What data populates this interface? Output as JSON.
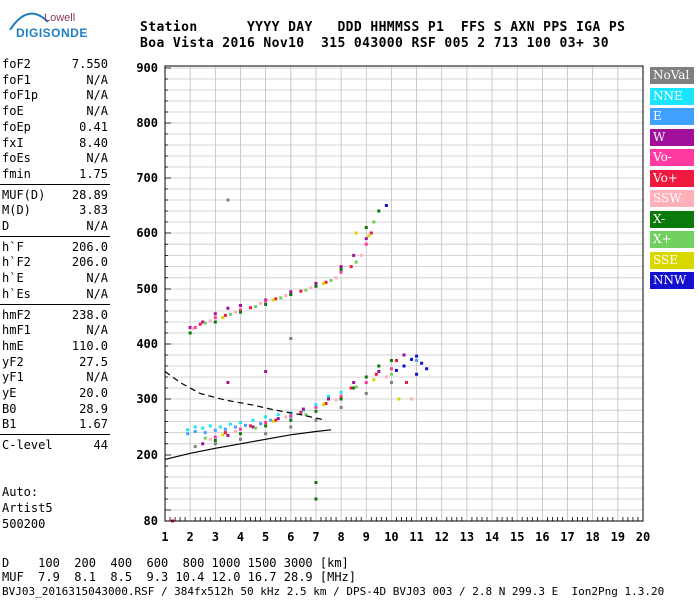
{
  "logo": {
    "line1": "Lowell",
    "line2": "DIGISONDE"
  },
  "header": {
    "line1": "Station      YYYY DAY   DDD HHMMSS P1  FFS S AXN PPS IGA PS",
    "line2": "Boa Vista 2016 Nov10  315 043000 RSF 005 2 713 100 03+ 30"
  },
  "params": [
    {
      "label": "foF2",
      "value": "7.550"
    },
    {
      "label": "foF1",
      "value": "N/A"
    },
    {
      "label": "foF1p",
      "value": "N/A"
    },
    {
      "label": "foE",
      "value": "N/A"
    },
    {
      "label": "foEp",
      "value": "0.41"
    },
    {
      "label": "fxI",
      "value": "8.40"
    },
    {
      "label": "foEs",
      "value": "N/A"
    },
    {
      "label": "fmin",
      "value": "1.75"
    },
    {
      "label": "MUF(D)",
      "value": "28.89"
    },
    {
      "label": "M(D)",
      "value": "3.83"
    },
    {
      "label": "D",
      "value": "N/A"
    },
    {
      "label": "h`F",
      "value": "206.0"
    },
    {
      "label": "h`F2",
      "value": "206.0"
    },
    {
      "label": "h`E",
      "value": "N/A"
    },
    {
      "label": "h`Es",
      "value": "N/A"
    },
    {
      "label": "hmF2",
      "value": "238.0"
    },
    {
      "label": "hmF1",
      "value": "N/A"
    },
    {
      "label": "hmE",
      "value": "110.0"
    },
    {
      "label": "yF2",
      "value": "27.5"
    },
    {
      "label": "yF1",
      "value": "N/A"
    },
    {
      "label": "yE",
      "value": "20.0"
    },
    {
      "label": "B0",
      "value": "28.9"
    },
    {
      "label": "B1",
      "value": "1.67"
    },
    {
      "label": "C-level",
      "value": "44"
    }
  ],
  "auto": {
    "line1": "Auto:",
    "line2": "Artist5",
    "line3": "500200"
  },
  "legend": [
    {
      "label": "NoVal",
      "color": "#808080"
    },
    {
      "label": "NNE",
      "color": "#19e5ff"
    },
    {
      "label": "E",
      "color": "#40a0ff"
    },
    {
      "label": "W",
      "color": "#a0109a"
    },
    {
      "label": "Vo-",
      "color": "#ff3aa0"
    },
    {
      "label": "Vo+",
      "color": "#ee1840"
    },
    {
      "label": "SSW",
      "color": "#ffb0b8"
    },
    {
      "label": "X-",
      "color": "#0a7a0a"
    },
    {
      "label": "X+",
      "color": "#70d060"
    },
    {
      "label": "SSE",
      "color": "#d8d800"
    },
    {
      "label": "NNW",
      "color": "#1410d0"
    }
  ],
  "footer": {
    "line1": "D    100  200  400  600  800 1000 1500 3000 [km]",
    "line2": "MUF  7.9  8.1  8.5  9.3 10.4 12.0 16.7 28.9 [MHz]",
    "line3": "BVJ03_2016315043000.RSF / 384fx512h 50 kHz 2.5 km / DPS-4D BVJ03 003 / 2.8 N 299.3 E  Ion2Png 1.3.20"
  },
  "chart_data": {
    "type": "scatter",
    "xlim": [
      1,
      20
    ],
    "ylim": [
      80,
      900
    ],
    "xticks": [
      "1",
      "2",
      "3",
      "4",
      "5",
      "6",
      "7",
      "8",
      "9",
      "10",
      "11",
      "12",
      "13",
      "14",
      "15",
      "16",
      "17",
      "18",
      "19",
      "20"
    ],
    "yticks": [
      "80",
      "200",
      "300",
      "400",
      "500",
      "600",
      "700",
      "800",
      "900"
    ],
    "grid": true,
    "legend_placement": "right",
    "series": [
      {
        "name": "NoVal",
        "points": [
          [
            2.2,
            215
          ],
          [
            3.0,
            220
          ],
          [
            4.0,
            228
          ],
          [
            5.0,
            238
          ],
          [
            6.0,
            250
          ],
          [
            7.0,
            262
          ],
          [
            8.0,
            285
          ],
          [
            9.0,
            310
          ],
          [
            10.0,
            330
          ],
          [
            3.5,
            660
          ],
          [
            6.0,
            410
          ]
        ]
      },
      {
        "name": "NNE",
        "points": [
          [
            1.9,
            245
          ],
          [
            2.2,
            250
          ],
          [
            2.5,
            248
          ],
          [
            2.8,
            252
          ],
          [
            3.2,
            250
          ],
          [
            3.6,
            255
          ],
          [
            4.0,
            258
          ],
          [
            4.5,
            262
          ],
          [
            5.0,
            268
          ],
          [
            5.5,
            272
          ],
          [
            6.0,
            275
          ],
          [
            6.5,
            280
          ],
          [
            7.0,
            290
          ],
          [
            7.5,
            305
          ],
          [
            8.0,
            312
          ]
        ]
      },
      {
        "name": "E",
        "points": [
          [
            1.9,
            238
          ],
          [
            2.2,
            242
          ],
          [
            2.6,
            240
          ],
          [
            3.0,
            244
          ],
          [
            3.4,
            246
          ],
          [
            3.8,
            250
          ],
          [
            4.2,
            253
          ],
          [
            4.8,
            256
          ],
          [
            5.2,
            262
          ],
          [
            6.0,
            268
          ],
          [
            10.5,
            360
          ],
          [
            11.0,
            370
          ]
        ]
      },
      {
        "name": "W",
        "points": [
          [
            2.0,
            430
          ],
          [
            2.5,
            440
          ],
          [
            3.0,
            455
          ],
          [
            3.5,
            465
          ],
          [
            4.0,
            470
          ],
          [
            5.0,
            480
          ],
          [
            6.0,
            495
          ],
          [
            7.0,
            510
          ],
          [
            8.0,
            540
          ],
          [
            8.5,
            560
          ],
          [
            9.0,
            590
          ],
          [
            2.5,
            220
          ],
          [
            3.5,
            235
          ],
          [
            4.5,
            250
          ],
          [
            5.5,
            265
          ],
          [
            6.5,
            282
          ],
          [
            7.5,
            300
          ],
          [
            8.5,
            330
          ],
          [
            9.5,
            350
          ],
          [
            10.5,
            380
          ],
          [
            3.5,
            330
          ],
          [
            5.0,
            350
          ]
        ]
      },
      {
        "name": "Vo-",
        "points": [
          [
            2.2,
            430
          ],
          [
            3.0,
            448
          ],
          [
            4.0,
            462
          ],
          [
            5.0,
            478
          ],
          [
            6.0,
            490
          ],
          [
            7.0,
            505
          ],
          [
            8.0,
            530
          ],
          [
            9.0,
            580
          ],
          [
            3.0,
            232
          ],
          [
            4.0,
            246
          ],
          [
            5.0,
            258
          ],
          [
            6.0,
            270
          ],
          [
            7.0,
            285
          ],
          [
            8.0,
            305
          ],
          [
            9.0,
            330
          ],
          [
            10.0,
            355
          ]
        ]
      },
      {
        "name": "Vo+",
        "points": [
          [
            2.4,
            436
          ],
          [
            3.4,
            452
          ],
          [
            4.4,
            466
          ],
          [
            5.4,
            482
          ],
          [
            6.4,
            496
          ],
          [
            7.4,
            512
          ],
          [
            8.4,
            540
          ],
          [
            9.2,
            600
          ],
          [
            3.4,
            240
          ],
          [
            4.4,
            252
          ],
          [
            5.4,
            262
          ],
          [
            6.4,
            276
          ],
          [
            7.4,
            292
          ],
          [
            8.4,
            320
          ],
          [
            9.4,
            345
          ],
          [
            10.2,
            370
          ],
          [
            10.6,
            330
          ],
          [
            1.3,
            80
          ]
        ]
      },
      {
        "name": "SSW",
        "points": [
          [
            2.1,
            428
          ],
          [
            2.8,
            442
          ],
          [
            3.8,
            458
          ],
          [
            4.8,
            474
          ],
          [
            5.8,
            488
          ],
          [
            6.8,
            502
          ],
          [
            7.8,
            520
          ],
          [
            8.8,
            560
          ],
          [
            2.8,
            228
          ],
          [
            3.8,
            242
          ],
          [
            5.8,
            268
          ],
          [
            7.8,
            298
          ],
          [
            9.8,
            340
          ],
          [
            10.8,
            300
          ]
        ]
      },
      {
        "name": "X-",
        "points": [
          [
            2.0,
            420
          ],
          [
            3.0,
            440
          ],
          [
            4.0,
            458
          ],
          [
            5.0,
            472
          ],
          [
            6.0,
            490
          ],
          [
            7.0,
            505
          ],
          [
            8.0,
            535
          ],
          [
            9.0,
            610
          ],
          [
            9.5,
            640
          ],
          [
            3.0,
            226
          ],
          [
            4.0,
            238
          ],
          [
            5.0,
            252
          ],
          [
            6.0,
            262
          ],
          [
            7.0,
            278
          ],
          [
            8.0,
            300
          ],
          [
            8.5,
            320
          ],
          [
            9.0,
            340
          ],
          [
            9.5,
            360
          ],
          [
            10.0,
            370
          ],
          [
            7.0,
            150
          ],
          [
            7.0,
            120
          ]
        ]
      },
      {
        "name": "X+",
        "points": [
          [
            2.6,
            438
          ],
          [
            3.6,
            454
          ],
          [
            4.6,
            468
          ],
          [
            5.6,
            484
          ],
          [
            6.6,
            498
          ],
          [
            7.6,
            515
          ],
          [
            8.6,
            548
          ],
          [
            9.3,
            620
          ],
          [
            2.6,
            230
          ],
          [
            4.6,
            248
          ],
          [
            6.6,
            272
          ],
          [
            8.6,
            322
          ],
          [
            10.0,
            345
          ]
        ]
      },
      {
        "name": "SSE",
        "points": [
          [
            3.3,
            448
          ],
          [
            5.3,
            480
          ],
          [
            7.3,
            510
          ],
          [
            9.1,
            595
          ],
          [
            3.3,
            236
          ],
          [
            5.3,
            260
          ],
          [
            7.3,
            290
          ],
          [
            9.3,
            335
          ],
          [
            10.3,
            300
          ],
          [
            8.6,
            600
          ]
        ]
      },
      {
        "name": "NNW",
        "points": [
          [
            10.5,
            360
          ],
          [
            10.8,
            372
          ],
          [
            11.0,
            378
          ],
          [
            11.2,
            365
          ],
          [
            11.4,
            355
          ],
          [
            10.2,
            352
          ],
          [
            11.0,
            345
          ],
          [
            9.8,
            650
          ]
        ]
      }
    ],
    "profile_curves": [
      {
        "name": "dashed",
        "style": "dashed",
        "points": [
          [
            1,
            350
          ],
          [
            1.6,
            330
          ],
          [
            2.4,
            310
          ],
          [
            3.4,
            298
          ],
          [
            4.4,
            290
          ],
          [
            5.4,
            280
          ],
          [
            6.4,
            272
          ],
          [
            7.4,
            262
          ]
        ]
      },
      {
        "name": "solid",
        "style": "solid",
        "points": [
          [
            1,
            192
          ],
          [
            2,
            203
          ],
          [
            3,
            212
          ],
          [
            4,
            220
          ],
          [
            5,
            228
          ],
          [
            6,
            236
          ],
          [
            7,
            242
          ],
          [
            7.6,
            245
          ]
        ]
      }
    ]
  }
}
